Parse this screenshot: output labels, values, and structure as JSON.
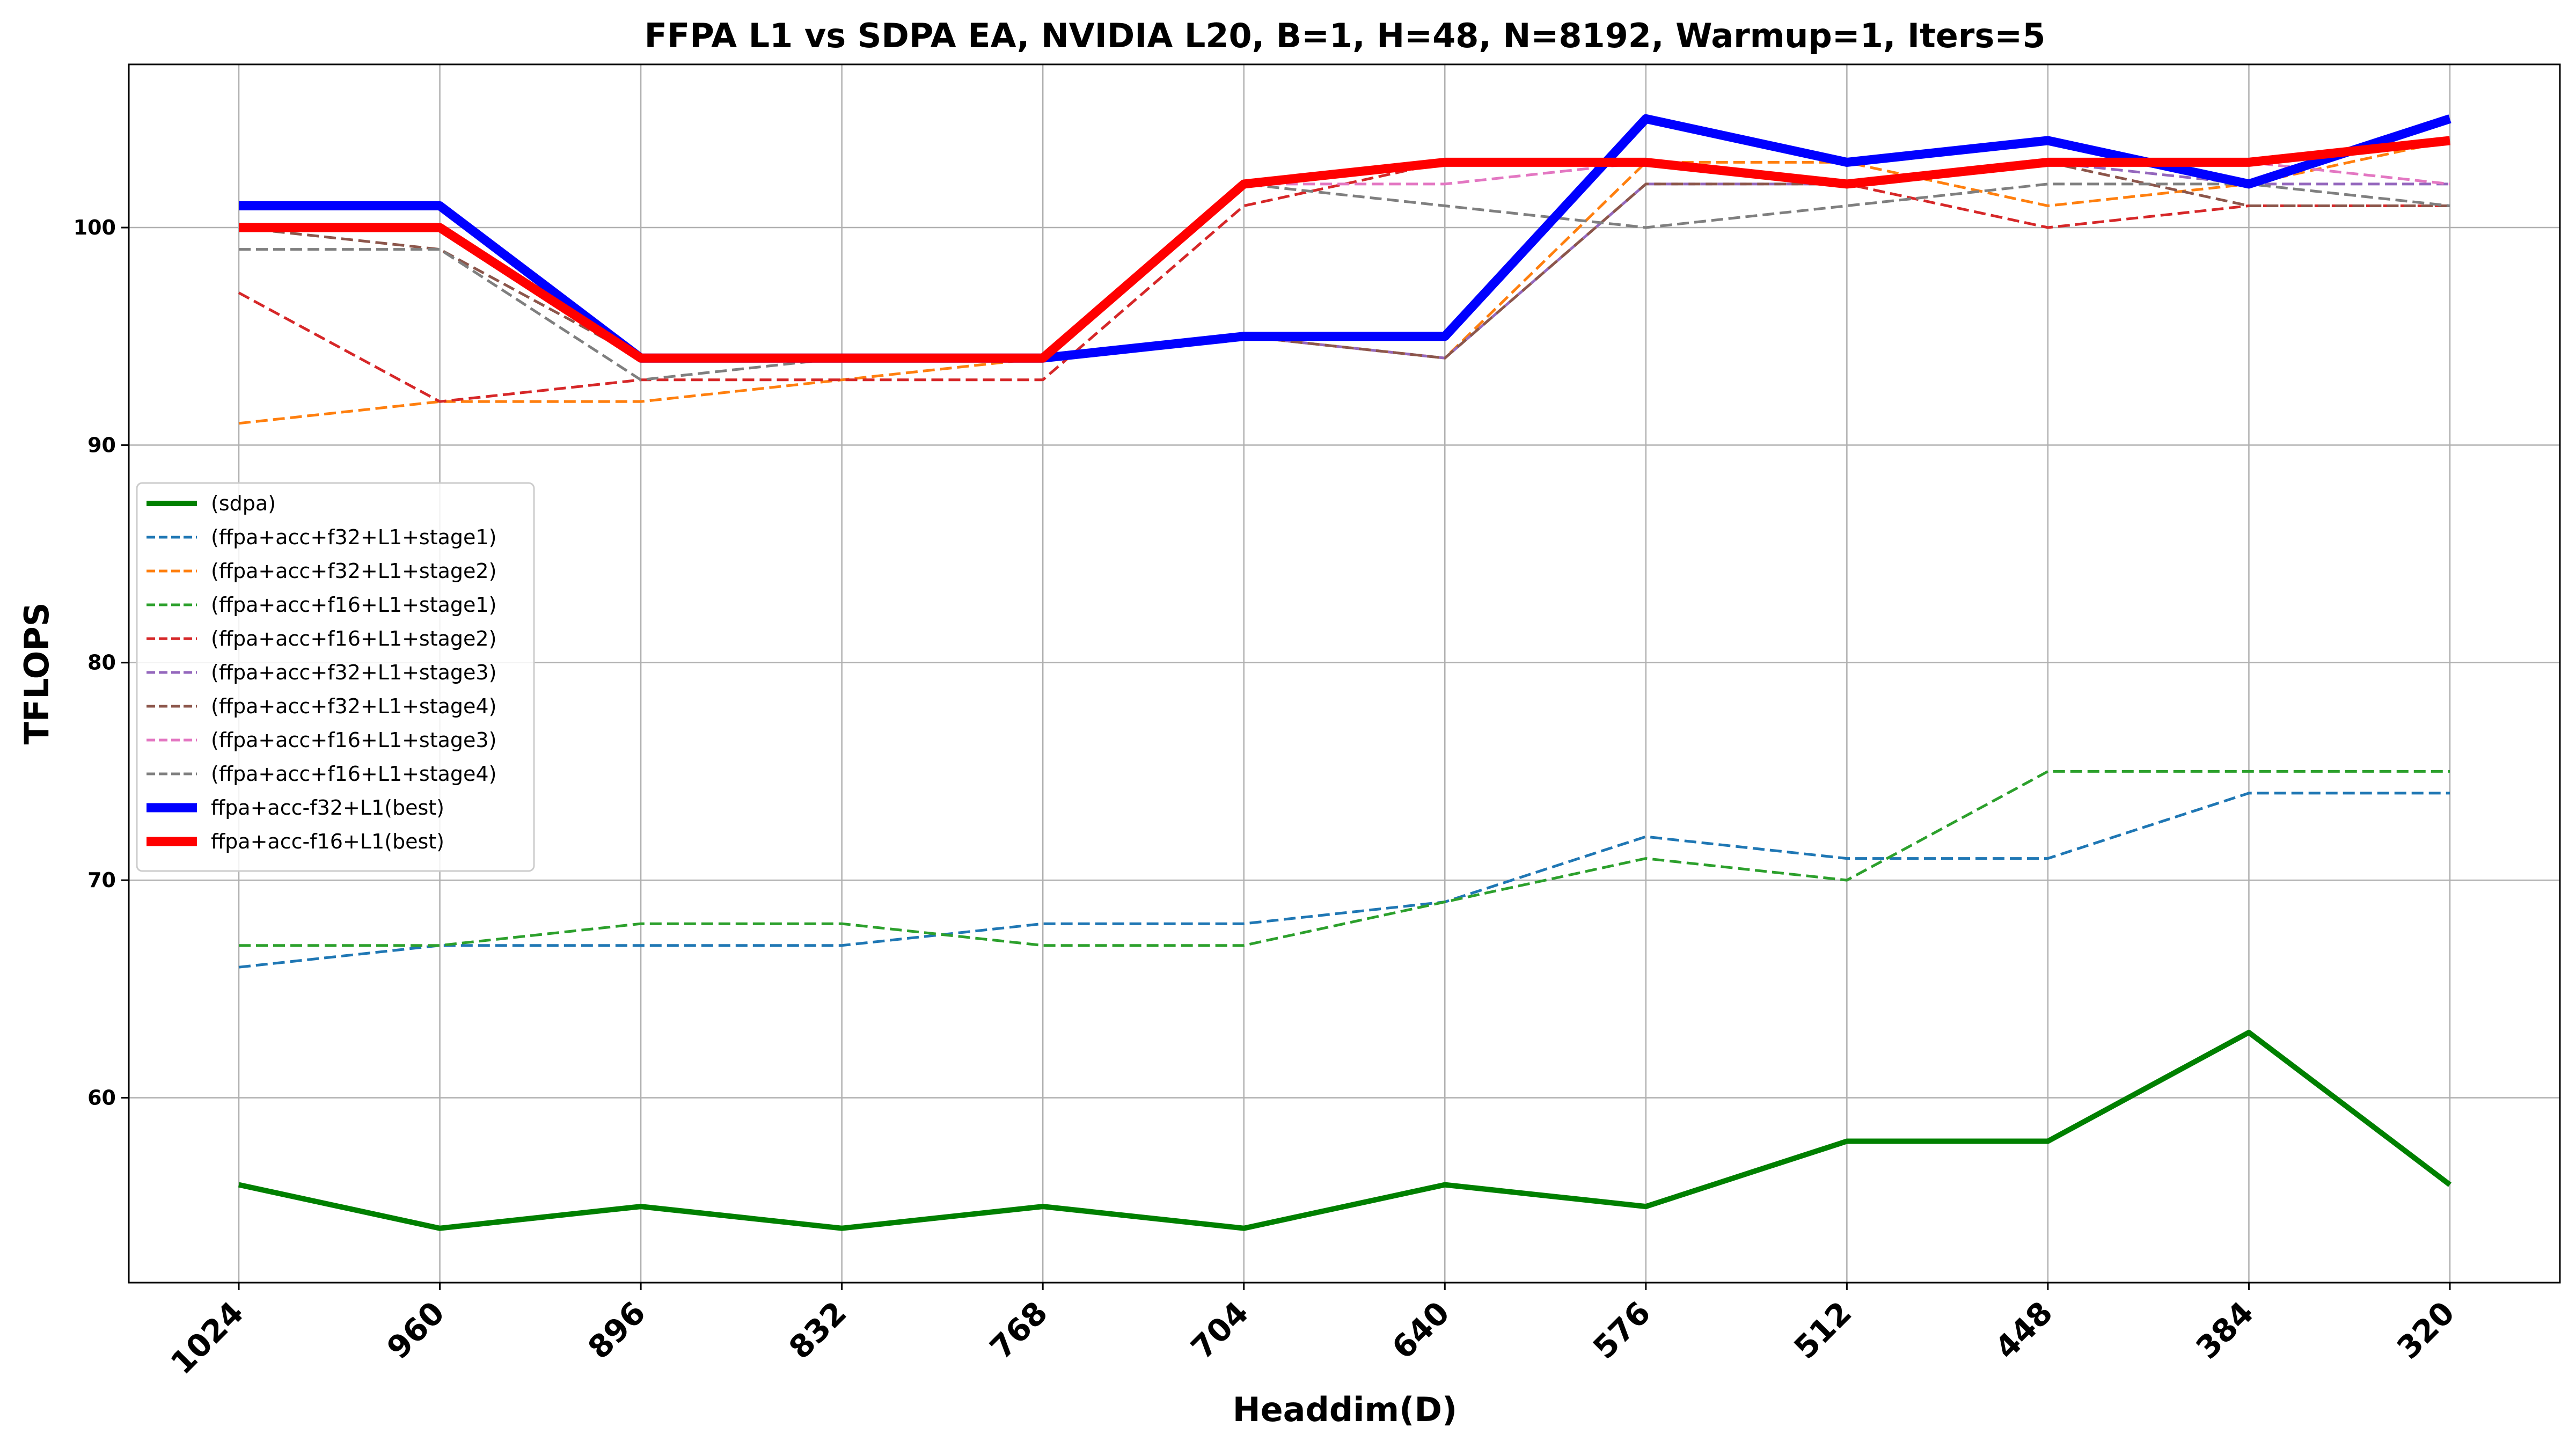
{
  "chart_data": {
    "type": "line",
    "title": "FFPA L1 vs SDPA EA, NVIDIA L20, B=1, H=48, N=8192, Warmup=1, Iters=5",
    "xlabel": "Headdim(D)",
    "ylabel": "TFLOPS",
    "categories": [
      "1024",
      "960",
      "896",
      "832",
      "768",
      "704",
      "640",
      "576",
      "512",
      "448",
      "384",
      "320"
    ],
    "yticks": [
      60,
      70,
      80,
      90,
      100
    ],
    "ylim": [
      51.5,
      107.5
    ],
    "grid": true,
    "legend_position": "center-left",
    "series": [
      {
        "name": "(sdpa)",
        "color": "#008000",
        "style": "solid",
        "weight": "thick",
        "values": [
          56,
          54,
          55,
          54,
          55,
          54,
          56,
          55,
          58,
          58,
          63,
          56
        ]
      },
      {
        "name": "(ffpa+acc+f32+L1+stage1)",
        "color": "#1f77b4",
        "style": "dashed",
        "weight": "thin",
        "values": [
          66,
          67,
          67,
          67,
          68,
          68,
          69,
          72,
          71,
          71,
          74,
          74
        ]
      },
      {
        "name": "(ffpa+acc+f32+L1+stage2)",
        "color": "#ff7f0e",
        "style": "dashed",
        "weight": "thin",
        "values": [
          91,
          92,
          92,
          93,
          94,
          95,
          94,
          103,
          103,
          101,
          102,
          104
        ]
      },
      {
        "name": "(ffpa+acc+f16+L1+stage1)",
        "color": "#2ca02c",
        "style": "dashed",
        "weight": "thin",
        "values": [
          67,
          67,
          68,
          68,
          67,
          67,
          69,
          71,
          70,
          75,
          75,
          75
        ]
      },
      {
        "name": "(ffpa+acc+f16+L1+stage2)",
        "color": "#d62728",
        "style": "dashed",
        "weight": "thin",
        "values": [
          97,
          92,
          93,
          93,
          93,
          101,
          103,
          103,
          102,
          100,
          101,
          101
        ]
      },
      {
        "name": "(ffpa+acc+f32+L1+stage3)",
        "color": "#9467bd",
        "style": "dashed",
        "weight": "thin",
        "values": [
          101,
          101,
          94,
          94,
          94,
          95,
          94,
          102,
          102,
          103,
          102,
          102
        ]
      },
      {
        "name": "(ffpa+acc+f32+L1+stage4)",
        "color": "#8c564b",
        "style": "dashed",
        "weight": "thin",
        "values": [
          100,
          99,
          94,
          94,
          94,
          95,
          94,
          102,
          102,
          103,
          101,
          101
        ]
      },
      {
        "name": "(ffpa+acc+f16+L1+stage3)",
        "color": "#e377c2",
        "style": "dashed",
        "weight": "thin",
        "values": [
          100,
          100,
          94,
          94,
          94,
          102,
          102,
          103,
          102,
          103,
          103,
          102
        ]
      },
      {
        "name": "(ffpa+acc+f16+L1+stage4)",
        "color": "#7f7f7f",
        "style": "dashed",
        "weight": "thin",
        "values": [
          99,
          99,
          93,
          94,
          94,
          102,
          101,
          100,
          101,
          102,
          102,
          101
        ]
      },
      {
        "name": "ffpa+acc-f32+L1(best)",
        "color": "#0000ff",
        "style": "solid",
        "weight": "bold",
        "values": [
          101,
          101,
          94,
          94,
          94,
          95,
          95,
          105,
          103,
          104,
          102,
          105
        ]
      },
      {
        "name": "ffpa+acc-f16+L1(best)",
        "color": "#ff0000",
        "style": "solid",
        "weight": "bold",
        "values": [
          100,
          100,
          94,
          94,
          94,
          102,
          103,
          103,
          102,
          103,
          103,
          104
        ]
      }
    ]
  }
}
